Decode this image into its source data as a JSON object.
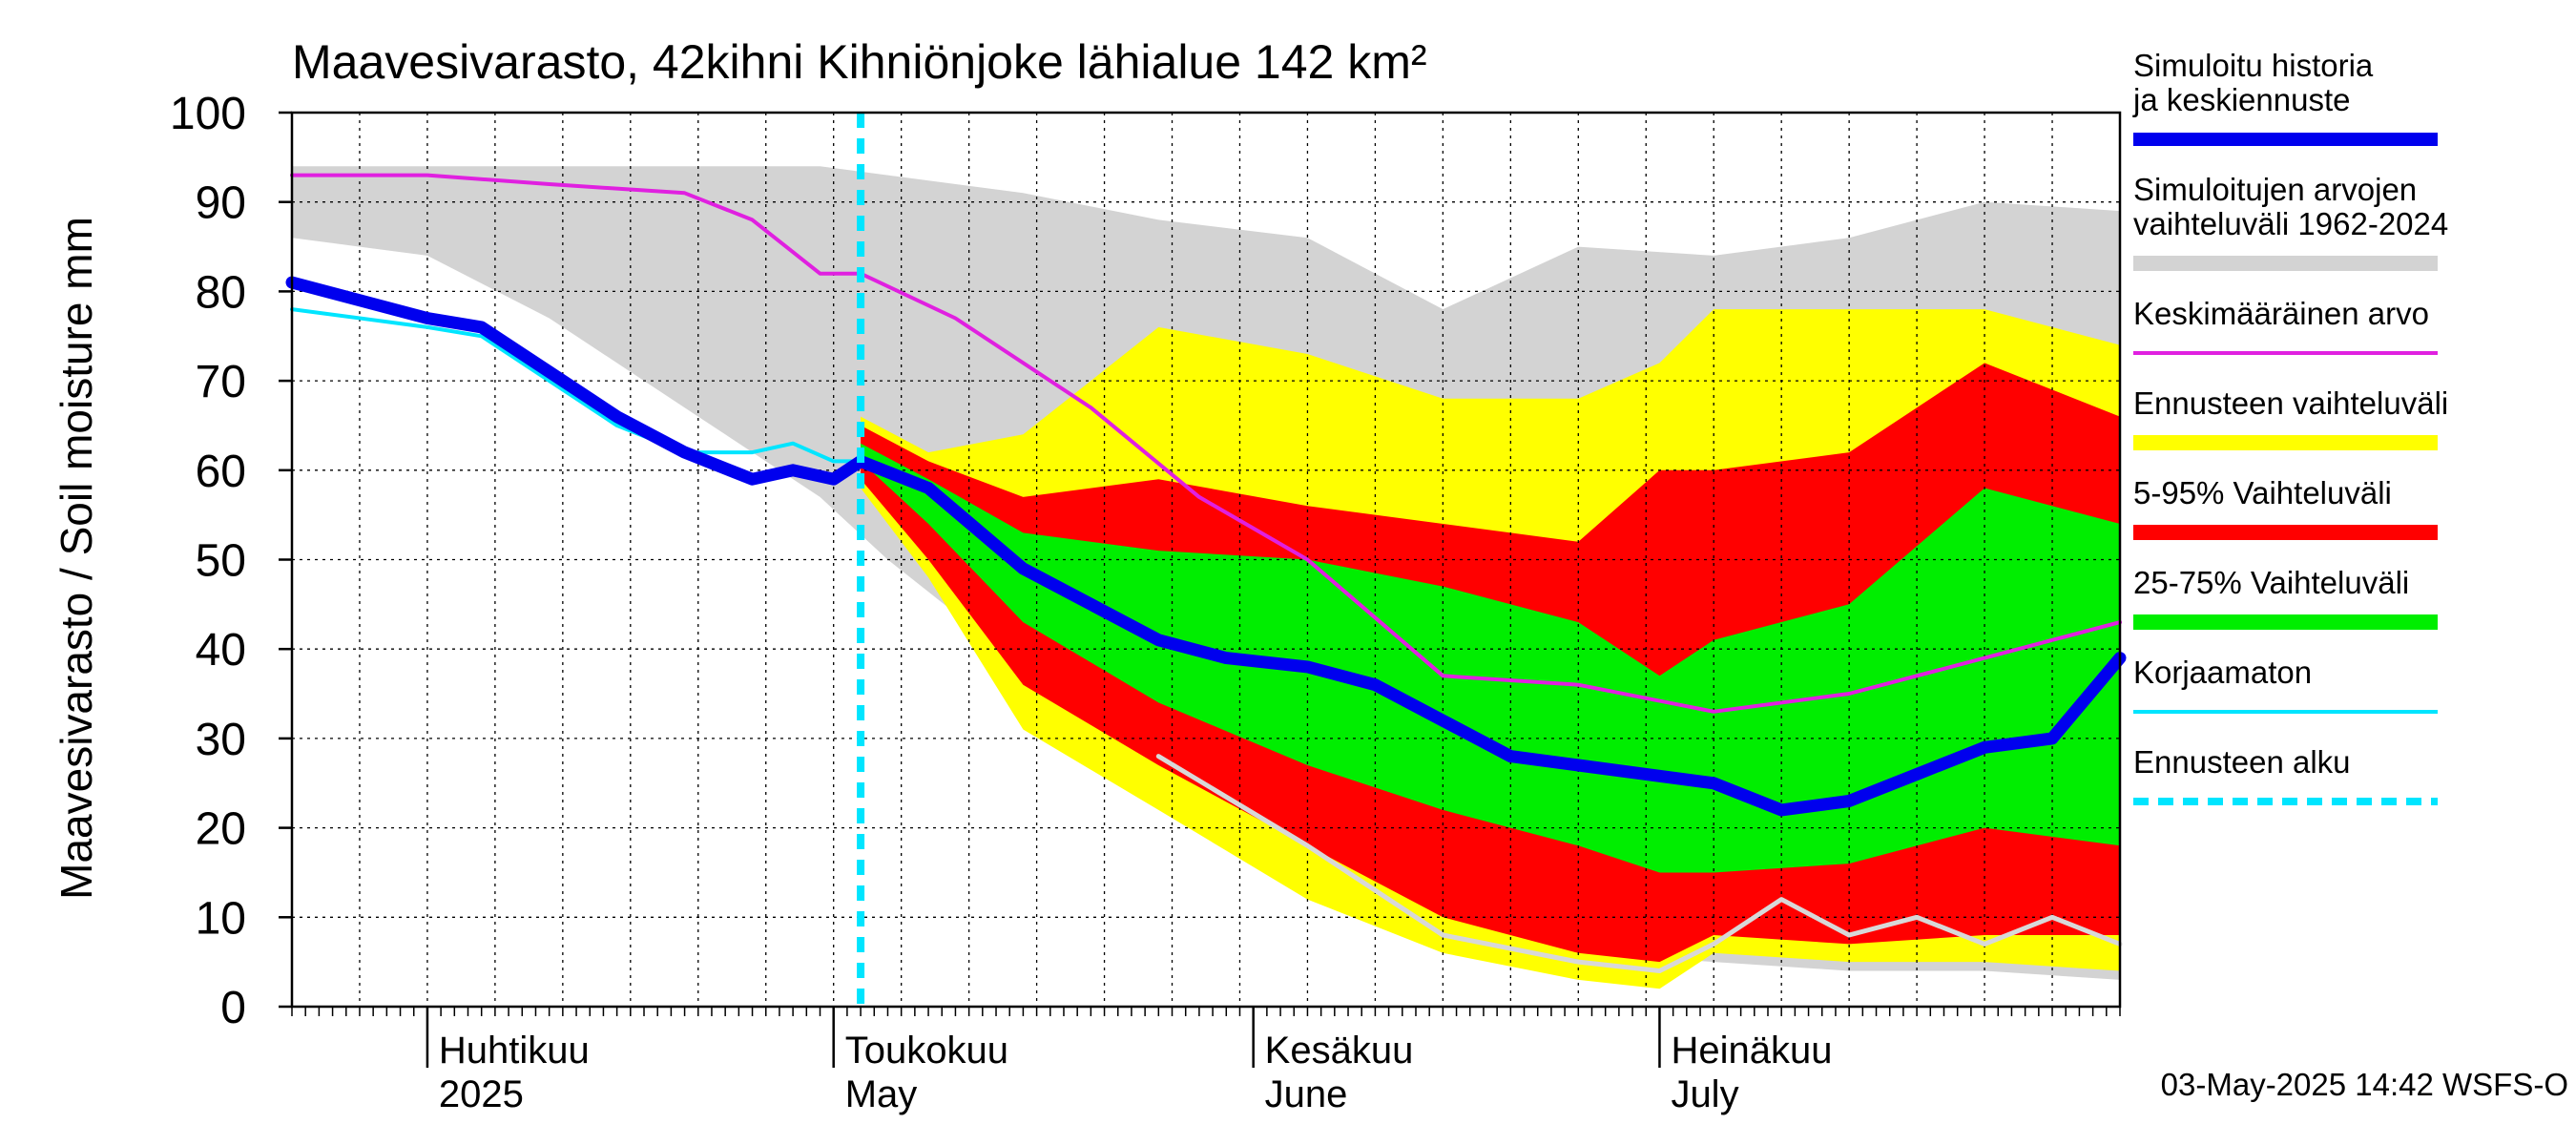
{
  "chart_data": {
    "type": "area",
    "title": "Maavesivarasto, 42kihni Kihniönjoke lähialue 142 km²",
    "ylabel": "Maavesivarasto / Soil moisture   mm",
    "ylim": [
      0,
      100
    ],
    "yticks": [
      0,
      10,
      20,
      30,
      40,
      50,
      60,
      70,
      80,
      90,
      100
    ],
    "x_start": "2025-03-22",
    "x_end": "2025-08-04",
    "forecast_start": "2025-05-03",
    "month_labels": [
      {
        "fi": "Huhtikuu",
        "en": "2025",
        "date": "2025-04-01"
      },
      {
        "fi": "Toukokuu",
        "en": "May",
        "date": "2025-05-01"
      },
      {
        "fi": "Kesäkuu",
        "en": "June",
        "date": "2025-06-01"
      },
      {
        "fi": "Heinäkuu",
        "en": "July",
        "date": "2025-07-01"
      }
    ],
    "timestamp": "03-May-2025 14:42 WSFS-O",
    "grid": true,
    "legend_position": "right",
    "legend": [
      {
        "label": "Simuloitu historia ja keskiennuste",
        "color": "#0000ee",
        "style": "thick-line"
      },
      {
        "label": "Simuloitujen arvojen vaihteluväli 1962-2024",
        "color": "#d3d3d3",
        "style": "band"
      },
      {
        "label": "Keskimääräinen arvo",
        "color": "#e020e0",
        "style": "line"
      },
      {
        "label": "Ennusteen vaihteluväli",
        "color": "#ffff00",
        "style": "band"
      },
      {
        "label": "5-95% Vaihteluväli",
        "color": "#ff0000",
        "style": "band"
      },
      {
        "label": "25-75% Vaihteluväli",
        "color": "#00ee00",
        "style": "band"
      },
      {
        "label": "Korjaamaton",
        "color": "#00e5ff",
        "style": "line"
      },
      {
        "label": "Ennusteen alku",
        "color": "#00e5ff",
        "style": "dashed"
      }
    ],
    "series": {
      "hist_range": {
        "name": "Simuloitujen arvojen vaihteluväli 1962-2024",
        "color": "#d3d3d3",
        "x": [
          "2025-03-22",
          "2025-04-01",
          "2025-04-10",
          "2025-04-20",
          "2025-04-30",
          "2025-05-05",
          "2025-05-15",
          "2025-05-25",
          "2025-06-05",
          "2025-06-15",
          "2025-06-25",
          "2025-07-05",
          "2025-07-15",
          "2025-07-25",
          "2025-08-04"
        ],
        "upper": [
          94,
          94,
          94,
          94,
          94,
          93,
          91,
          88,
          86,
          78,
          85,
          84,
          86,
          90,
          89
        ],
        "lower": [
          86,
          84,
          77,
          67,
          57,
          50,
          38,
          27,
          14,
          7,
          6,
          5,
          4,
          4,
          3
        ]
      },
      "forecast_range": {
        "name": "Ennusteen vaihteluväli",
        "color": "#ffff00",
        "x": [
          "2025-05-03",
          "2025-05-08",
          "2025-05-15",
          "2025-05-25",
          "2025-06-05",
          "2025-06-15",
          "2025-06-25",
          "2025-07-01",
          "2025-07-05",
          "2025-07-15",
          "2025-07-25",
          "2025-08-04"
        ],
        "upper": [
          66,
          62,
          64,
          76,
          73,
          68,
          68,
          72,
          78,
          78,
          78,
          74
        ],
        "lower": [
          58,
          48,
          31,
          22,
          12,
          6,
          3,
          2,
          6,
          5,
          5,
          4
        ]
      },
      "p5_95": {
        "name": "5-95% Vaihteluväli",
        "color": "#ff0000",
        "x": [
          "2025-05-03",
          "2025-05-08",
          "2025-05-15",
          "2025-05-25",
          "2025-06-05",
          "2025-06-15",
          "2025-06-25",
          "2025-07-01",
          "2025-07-05",
          "2025-07-15",
          "2025-07-25",
          "2025-08-04"
        ],
        "upper": [
          65,
          61,
          57,
          59,
          56,
          54,
          52,
          60,
          60,
          62,
          72,
          66
        ],
        "lower": [
          59,
          50,
          36,
          27,
          18,
          10,
          6,
          5,
          8,
          7,
          8,
          8
        ]
      },
      "p25_75": {
        "name": "25-75% Vaihteluväli",
        "color": "#00ee00",
        "x": [
          "2025-05-03",
          "2025-05-08",
          "2025-05-15",
          "2025-05-25",
          "2025-06-05",
          "2025-06-15",
          "2025-06-25",
          "2025-07-01",
          "2025-07-05",
          "2025-07-15",
          "2025-07-25",
          "2025-08-04"
        ],
        "upper": [
          63,
          59,
          53,
          51,
          50,
          47,
          43,
          37,
          41,
          45,
          58,
          54
        ],
        "lower": [
          61,
          54,
          43,
          34,
          27,
          22,
          18,
          15,
          15,
          16,
          20,
          18
        ]
      },
      "mean": {
        "name": "Keskimääräinen arvo",
        "color": "#e020e0",
        "x": [
          "2025-03-22",
          "2025-04-01",
          "2025-04-10",
          "2025-04-20",
          "2025-04-25",
          "2025-04-30",
          "2025-05-03",
          "2025-05-10",
          "2025-05-20",
          "2025-05-28",
          "2025-06-05",
          "2025-06-15",
          "2025-06-25",
          "2025-07-05",
          "2025-07-15",
          "2025-07-25",
          "2025-08-04"
        ],
        "values": [
          93,
          93,
          92,
          91,
          88,
          82,
          82,
          77,
          67,
          57,
          50,
          37,
          36,
          33,
          35,
          39,
          43
        ]
      },
      "history_forecast": {
        "name": "Simuloitu historia ja keskiennuste",
        "color": "#0000ee",
        "x": [
          "2025-03-22",
          "2025-04-01",
          "2025-04-05",
          "2025-04-10",
          "2025-04-15",
          "2025-04-20",
          "2025-04-25",
          "2025-04-28",
          "2025-05-01",
          "2025-05-03",
          "2025-05-08",
          "2025-05-15",
          "2025-05-20",
          "2025-05-25",
          "2025-05-30",
          "2025-06-05",
          "2025-06-10",
          "2025-06-15",
          "2025-06-20",
          "2025-06-25",
          "2025-06-30",
          "2025-07-05",
          "2025-07-10",
          "2025-07-15",
          "2025-07-20",
          "2025-07-25",
          "2025-07-30",
          "2025-08-04"
        ],
        "values": [
          81,
          77,
          76,
          71,
          66,
          62,
          59,
          60,
          59,
          61,
          58,
          49,
          45,
          41,
          39,
          38,
          36,
          32,
          28,
          27,
          26,
          25,
          22,
          23,
          26,
          29,
          30,
          39
        ]
      },
      "uncorrected": {
        "name": "Korjaamaton",
        "color": "#00e5ff",
        "x": [
          "2025-03-22",
          "2025-04-01",
          "2025-04-05",
          "2025-04-10",
          "2025-04-15",
          "2025-04-20",
          "2025-04-25",
          "2025-04-28",
          "2025-05-01",
          "2025-05-03"
        ],
        "values": [
          78,
          76,
          75,
          70,
          65,
          62,
          62,
          63,
          61,
          61
        ]
      },
      "min_trace": {
        "name": "",
        "color": "#d8d8d8",
        "x": [
          "2025-05-25",
          "2025-06-05",
          "2025-06-15",
          "2025-06-25",
          "2025-07-01",
          "2025-07-05",
          "2025-07-10",
          "2025-07-15",
          "2025-07-20",
          "2025-07-25",
          "2025-07-30",
          "2025-08-04"
        ],
        "values": [
          28,
          18,
          8,
          5,
          4,
          7,
          12,
          8,
          10,
          7,
          10,
          7
        ]
      }
    }
  }
}
